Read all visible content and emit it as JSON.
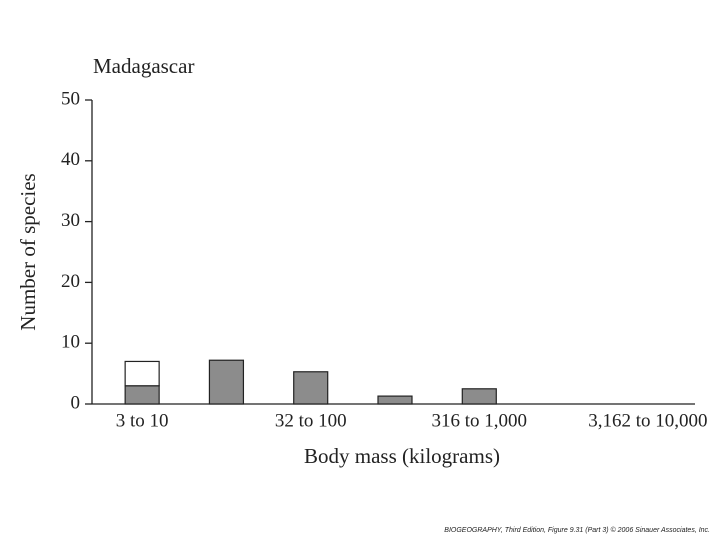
{
  "chart_data": {
    "type": "stacked-bar",
    "title": "Madagascar",
    "x_label": "Body mass (kilograms)",
    "y_label": "Number of species",
    "categories": [
      "3 to 10",
      null,
      "32 to 100",
      null,
      "316 to 1,000",
      null,
      "3,162 to 10,000"
    ],
    "series": [
      {
        "color": "#8c8c8c",
        "values": [
          3,
          7.2,
          5.3,
          1.3,
          2.5,
          0,
          0
        ]
      },
      {
        "color": "#ffffff",
        "values": [
          4,
          0,
          0,
          0,
          0,
          0,
          0
        ]
      }
    ],
    "ylim": [
      0,
      50
    ],
    "yticks": [
      0,
      10,
      20,
      30,
      40,
      50
    ],
    "footer": "BIOGEOGRAPHY, Third Edition, Figure 9.31 (Part 3) © 2006 Sinauer Associates, Inc."
  }
}
